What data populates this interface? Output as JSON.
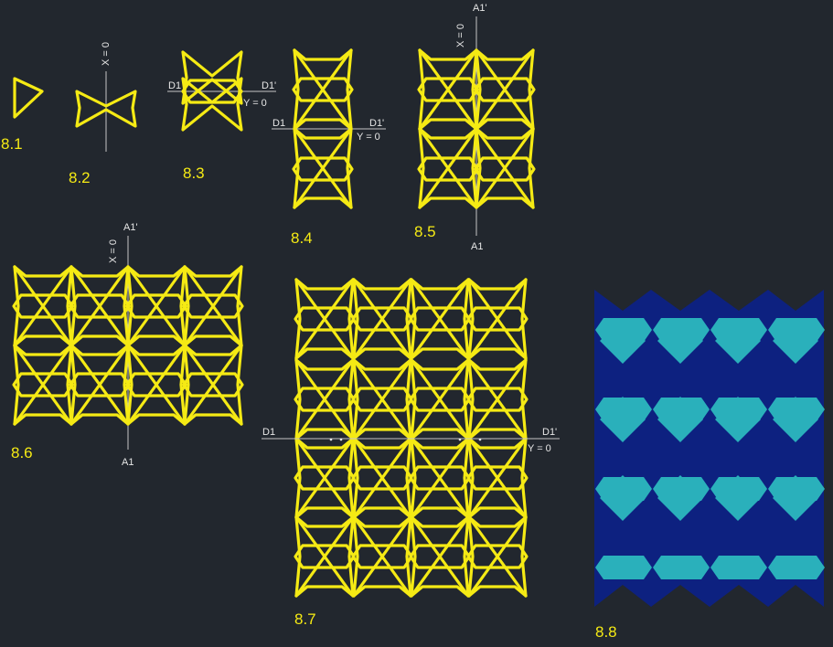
{
  "figures": {
    "f1": {
      "label": "8.1"
    },
    "f2": {
      "label": "8.2",
      "axis": "X = 0"
    },
    "f3": {
      "label": "8.3",
      "d_left": "D1",
      "d_right": "D1'",
      "axis": "Y = 0"
    },
    "f4": {
      "label": "8.4",
      "d_left": "D1",
      "d_right": "D1'",
      "axis": "Y = 0"
    },
    "f5": {
      "label": "8.5",
      "axis": "X = 0",
      "a_top": "A1'",
      "a_bottom": "A1"
    },
    "f6": {
      "label": "8.6",
      "axis": "X = 0",
      "a_top": "A1'",
      "a_bottom": "A1"
    },
    "f7": {
      "label": "8.7",
      "d_left": "D1",
      "d_right": "D1'",
      "axis": "Y = 0"
    },
    "f8": {
      "label": "8.8"
    }
  },
  "colors": {
    "background": "#22272e",
    "stroke": "#f5ea14",
    "guide": "#c6c6c6",
    "navy": "#0d2180",
    "teal": "#2ab0bb"
  }
}
